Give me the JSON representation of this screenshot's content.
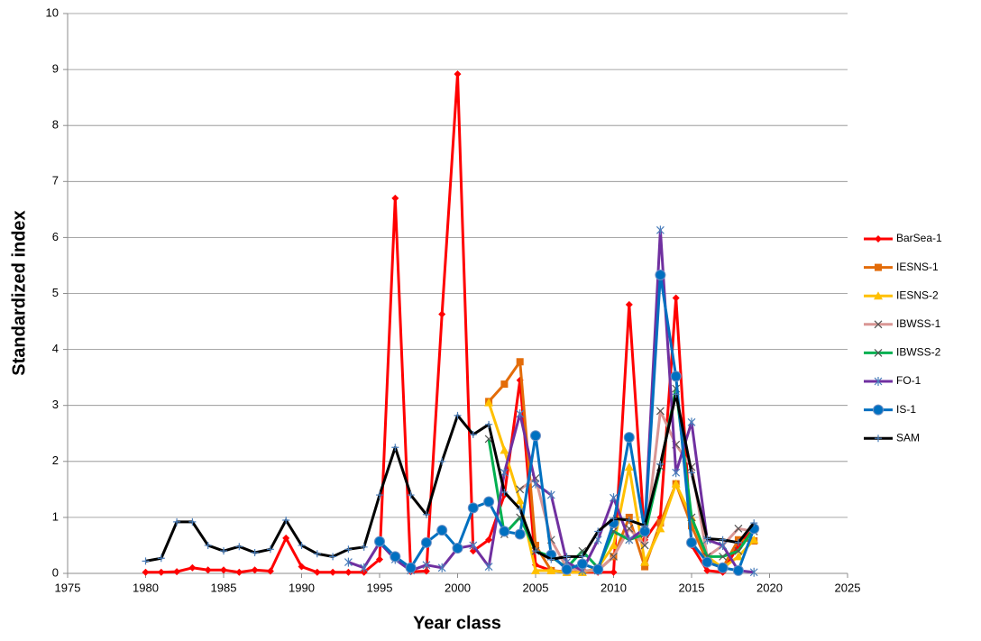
{
  "chart_data": {
    "type": "line",
    "x_label": "Year class",
    "y_label": "Standardized index",
    "xlim": [
      1975,
      2025
    ],
    "xticks": [
      1975,
      1980,
      1985,
      1990,
      1995,
      2000,
      2005,
      2010,
      2015,
      2020,
      2025
    ],
    "ylim": [
      0,
      10
    ],
    "yticks": [
      0,
      1,
      2,
      3,
      4,
      5,
      6,
      7,
      8,
      9,
      10
    ],
    "grid": true,
    "legend": "right",
    "series": [
      {
        "name": "BarSea-1",
        "color": "#ff0000",
        "marker": "diamond",
        "x": [
          1980,
          1981,
          1982,
          1983,
          1984,
          1985,
          1986,
          1987,
          1988,
          1989,
          1990,
          1991,
          1992,
          1993,
          1994,
          1995,
          1996,
          1997,
          1998,
          1999,
          2000,
          2001,
          2002,
          2003,
          2004,
          2005,
          2006,
          2007,
          2008,
          2009,
          2010,
          2011,
          2012,
          2013,
          2014,
          2015,
          2016,
          2017,
          2018,
          2019
        ],
        "values": [
          0.02,
          0.02,
          0.03,
          0.1,
          0.06,
          0.06,
          0.02,
          0.06,
          0.04,
          0.63,
          0.12,
          0.02,
          0.02,
          0.02,
          0.02,
          0.25,
          6.7,
          0.03,
          0.04,
          4.63,
          8.92,
          0.4,
          0.6,
          1.4,
          3.45,
          0.15,
          0.05,
          0.03,
          0.02,
          0.02,
          0.02,
          4.8,
          0.6,
          1.0,
          4.92,
          0.5,
          0.05,
          0.02,
          0.5,
          0.8
        ]
      },
      {
        "name": "IESNS-1",
        "color": "#e36c09",
        "marker": "square",
        "x": [
          2002,
          2003,
          2004,
          2005,
          2006,
          2007,
          2008,
          2009,
          2010,
          2011,
          2012,
          2013,
          2014,
          2015,
          2016,
          2017,
          2018,
          2019
        ],
        "values": [
          3.07,
          3.38,
          3.78,
          0.5,
          0.05,
          0.02,
          0.02,
          0.05,
          0.3,
          1.0,
          0.12,
          0.9,
          1.6,
          0.85,
          0.2,
          0.1,
          0.6,
          0.58
        ]
      },
      {
        "name": "IESNS-2",
        "color": "#ffc000",
        "marker": "triangle",
        "x": [
          2002,
          2003,
          2004,
          2005,
          2006,
          2007,
          2008,
          2009,
          2010,
          2011,
          2012,
          2013,
          2014,
          2015,
          2016,
          2017,
          2018,
          2019
        ],
        "values": [
          3.05,
          2.2,
          1.3,
          0.05,
          0.05,
          0.02,
          0.02,
          0.1,
          0.5,
          1.9,
          0.2,
          0.8,
          1.6,
          1.0,
          0.3,
          0.1,
          0.3,
          0.6
        ]
      },
      {
        "name": "IBWSS-1",
        "color": "#d99694",
        "marker": "x",
        "x": [
          2004,
          2005,
          2006,
          2007,
          2008,
          2009,
          2010,
          2011,
          2012,
          2013,
          2014,
          2015,
          2016,
          2017,
          2018,
          2019
        ],
        "values": [
          1.5,
          1.7,
          0.6,
          0.1,
          0.05,
          0.05,
          0.3,
          0.8,
          0.5,
          2.9,
          2.3,
          1.9,
          0.3,
          0.5,
          0.8,
          0.75
        ]
      },
      {
        "name": "IBWSS-2",
        "color": "#00b050",
        "marker": "x",
        "x": [
          2002,
          2003,
          2004,
          2005,
          2006,
          2007,
          2008,
          2009,
          2010,
          2011,
          2012,
          2013,
          2014,
          2015,
          2016,
          2017,
          2018,
          2019
        ],
        "values": [
          2.4,
          0.7,
          1.0,
          0.4,
          0.3,
          0.1,
          0.4,
          0.1,
          0.75,
          0.6,
          0.7,
          1.9,
          3.3,
          1.0,
          0.3,
          0.3,
          0.4,
          0.8
        ]
      },
      {
        "name": "FO-1",
        "color": "#7030a0",
        "marker": "star",
        "x": [
          1993,
          1994,
          1995,
          1996,
          1997,
          1998,
          1999,
          2000,
          2001,
          2002,
          2003,
          2004,
          2005,
          2006,
          2007,
          2008,
          2009,
          2010,
          2011,
          2012,
          2013,
          2014,
          2015,
          2016,
          2017,
          2018,
          2019
        ],
        "values": [
          0.2,
          0.1,
          0.55,
          0.25,
          0.05,
          0.15,
          0.1,
          0.45,
          0.5,
          0.12,
          1.8,
          2.85,
          1.6,
          1.4,
          0.2,
          0.05,
          0.6,
          1.35,
          0.6,
          0.8,
          6.13,
          1.8,
          2.7,
          0.6,
          0.5,
          0.05,
          0.02
        ]
      },
      {
        "name": "IS-1",
        "color": "#0070c0",
        "marker": "circle",
        "x": [
          1995,
          1996,
          1997,
          1998,
          1999,
          2000,
          2001,
          2002,
          2003,
          2004,
          2005,
          2006,
          2007,
          2008,
          2009,
          2010,
          2011,
          2012,
          2013,
          2014,
          2015,
          2016,
          2017,
          2018,
          2019
        ],
        "values": [
          0.57,
          0.3,
          0.1,
          0.55,
          0.77,
          0.45,
          1.17,
          1.28,
          0.75,
          0.7,
          2.46,
          0.33,
          0.07,
          0.17,
          0.07,
          0.9,
          2.43,
          0.75,
          5.33,
          3.52,
          0.55,
          0.2,
          0.1,
          0.05,
          0.8
        ]
      },
      {
        "name": "SAM",
        "color": "#000000",
        "marker": "plus",
        "x": [
          1980,
          1981,
          1982,
          1983,
          1984,
          1985,
          1986,
          1987,
          1988,
          1989,
          1990,
          1991,
          1992,
          1993,
          1994,
          1995,
          1996,
          1997,
          1998,
          1999,
          2000,
          2001,
          2002,
          2003,
          2004,
          2005,
          2006,
          2007,
          2008,
          2009,
          2010,
          2011,
          2012,
          2013,
          2014,
          2015,
          2016,
          2017,
          2018,
          2019
        ],
        "values": [
          0.22,
          0.27,
          0.92,
          0.92,
          0.5,
          0.4,
          0.48,
          0.37,
          0.43,
          0.95,
          0.5,
          0.35,
          0.3,
          0.43,
          0.47,
          1.4,
          2.25,
          1.4,
          1.05,
          2.0,
          2.82,
          2.48,
          2.66,
          1.45,
          1.15,
          0.4,
          0.25,
          0.3,
          0.3,
          0.75,
          0.98,
          0.95,
          0.85,
          1.95,
          3.2,
          1.8,
          0.62,
          0.6,
          0.55,
          0.9
        ]
      }
    ]
  }
}
